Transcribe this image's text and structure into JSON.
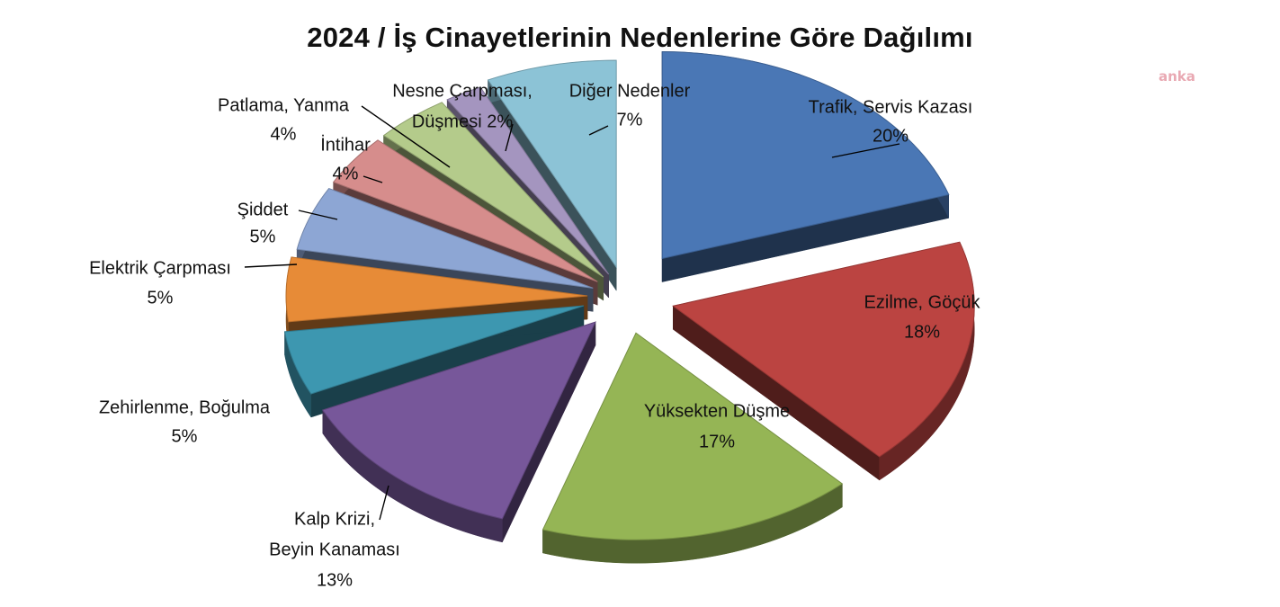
{
  "chart_data": {
    "type": "pie",
    "style": "3d-exploded",
    "title": "2024 / İş Cinayetlerinin Nedenlerine Göre Dağılımı",
    "slices": [
      {
        "label": "Trafik, Servis Kazası",
        "value": 20,
        "value_label": "20%",
        "color": "#4a77b5"
      },
      {
        "label": "Ezilme, Göçük",
        "value": 18,
        "value_label": "18%",
        "color": "#bb4441"
      },
      {
        "label": "Yüksekten Düşme",
        "value": 17,
        "value_label": "17%",
        "color": "#95b555"
      },
      {
        "label": "Kalp Krizi, Beyin Kanaması",
        "value": 13,
        "value_label": "13%",
        "color": "#77579a"
      },
      {
        "label": "Zehirlenme, Boğulma",
        "value": 5,
        "value_label": "5%",
        "color": "#3d97b0"
      },
      {
        "label": "Elektrik Çarpması",
        "value": 5,
        "value_label": "5%",
        "color": "#e78b37"
      },
      {
        "label": "Şiddet",
        "value": 5,
        "value_label": "5%",
        "color": "#8da6d4"
      },
      {
        "label": "İntihar",
        "value": 4,
        "value_label": "4%",
        "color": "#d68d8c"
      },
      {
        "label": "Patlama, Yanma",
        "value": 4,
        "value_label": "4%",
        "color": "#b4cb8b"
      },
      {
        "label": "Nesne Çarpması, Düşmesi",
        "value": 2,
        "value_label": "2%",
        "color": "#a495bf"
      },
      {
        "label": "Diğer Nedenler",
        "value": 7,
        "value_label": "7%",
        "color": "#8cc3d6"
      }
    ]
  },
  "watermark": "anka"
}
